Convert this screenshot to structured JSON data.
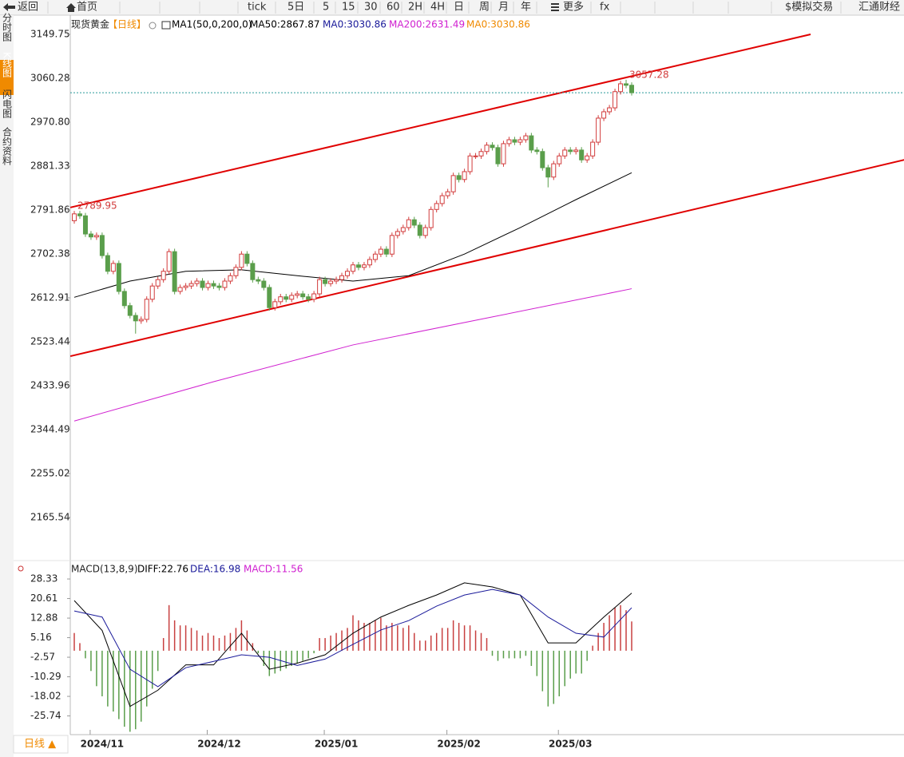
{
  "toolbar": [
    "返回",
    "首页",
    "tick",
    "5日",
    "5",
    "15",
    "30",
    "60",
    "2H",
    "4H",
    "日",
    "周",
    "月",
    "年",
    "更多",
    "fx",
    "$模拟交易",
    "汇通财经"
  ],
  "sidebar": [
    "分时图",
    "K线图",
    "闪电图",
    "合约资料"
  ],
  "tab": "日线 ▲",
  "chart_data": {
    "type": "candlestick",
    "title": "现货黄金",
    "period": "【日线】",
    "legend": [
      {
        "text": "MA1(50,0,200,0)",
        "color": "#000000"
      },
      {
        "text": "MA50:2867.87",
        "color": "#000000"
      },
      {
        "text": "MA0:3030.86",
        "color": "#1a1a9a"
      },
      {
        "text": "MA200:2631.49",
        "color": "#d020d0"
      },
      {
        "text": "MA0:3030.86",
        "color": "#f08a00"
      }
    ],
    "up_color": "#d23c3c",
    "down_color": "#5a9e4b",
    "ylim": [
      2080.9,
      3170.9
    ],
    "yticks": [
      3149.75,
      3060.28,
      {
        "value": 2970.8,
        "label": "2970.80"
      },
      2881.33,
      2791.86,
      2702.38,
      2612.91,
      2523.44,
      2433.96,
      2344.49,
      2255.02,
      2165.54
    ],
    "xticks": [
      {
        "value": 5,
        "label": "2024/11"
      },
      {
        "value": 26,
        "label": "2024/12"
      },
      {
        "value": 47,
        "label": "2025/01"
      },
      {
        "value": 69,
        "label": "2025/02"
      },
      {
        "value": 89,
        "label": "2025/03"
      }
    ],
    "open": [
      2770,
      2784,
      2780,
      2743,
      2737,
      2740,
      2699,
      2667,
      2683,
      2626,
      2597,
      2577,
      2566,
      2569,
      2610,
      2637,
      2650,
      2667,
      2707,
      2626,
      2634,
      2637,
      2642,
      2647,
      2634,
      2642,
      2637,
      2634,
      2647,
      2658,
      2675,
      2702,
      2683,
      2650,
      2647,
      2634,
      2593,
      2605,
      2615,
      2610,
      2618,
      2621,
      2615,
      2610,
      2621,
      2650,
      2642,
      2647,
      2650,
      2658,
      2667,
      2680,
      2675,
      2680,
      2691,
      2702,
      2712,
      2702,
      2740,
      2748,
      2756,
      2772,
      2761,
      2740,
      2756,
      2793,
      2805,
      2821,
      2829,
      2862,
      2854,
      2870,
      2902,
      2902,
      2911,
      2924,
      2919,
      2886,
      2927,
      2935,
      2930,
      2935,
      2943,
      2914,
      2911,
      2878,
      2859,
      2886,
      2902,
      2914,
      2911,
      2914,
      2894,
      2902,
      2930,
      2979,
      2992,
      3000,
      3033,
      3049,
      3046
    ],
    "high": [
      2789.95,
      2790,
      2786,
      2749,
      2746,
      2746,
      2705,
      2689,
      2689,
      2632,
      2603,
      2583,
      2575,
      2616,
      2643,
      2656,
      2673,
      2713,
      2713,
      2640,
      2643,
      2648,
      2653,
      2653,
      2648,
      2648,
      2643,
      2653,
      2664,
      2681,
      2708,
      2708,
      2689,
      2656,
      2653,
      2640,
      2611,
      2621,
      2621,
      2624,
      2627,
      2627,
      2621,
      2627,
      2656,
      2656,
      2653,
      2656,
      2664,
      2673,
      2686,
      2686,
      2686,
      2697,
      2708,
      2718,
      2718,
      2746,
      2754,
      2762,
      2778,
      2778,
      2767,
      2762,
      2799,
      2811,
      2827,
      2835,
      2868,
      2868,
      2876,
      2908,
      2908,
      2917,
      2930,
      2930,
      2925,
      2933,
      2941,
      2941,
      2941,
      2949,
      2949,
      2920,
      2917,
      2884,
      2892,
      2908,
      2920,
      2920,
      2920,
      2920,
      2908,
      2936,
      2985,
      2998,
      3006,
      3039,
      3055,
      3057.28,
      3052
    ],
    "low": [
      2764,
      2774,
      2737,
      2731,
      2731,
      2693,
      2661,
      2661,
      2620,
      2591,
      2571,
      2540,
      2560,
      2563,
      2604,
      2631,
      2644,
      2661,
      2620,
      2620,
      2628,
      2631,
      2636,
      2628,
      2628,
      2631,
      2628,
      2628,
      2641,
      2652,
      2669,
      2677,
      2644,
      2641,
      2628,
      2587,
      2587,
      2599,
      2604,
      2604,
      2612,
      2609,
      2604,
      2604,
      2615,
      2636,
      2636,
      2641,
      2644,
      2652,
      2661,
      2669,
      2669,
      2674,
      2685,
      2696,
      2696,
      2696,
      2734,
      2742,
      2750,
      2755,
      2734,
      2734,
      2750,
      2787,
      2799,
      2815,
      2823,
      2848,
      2848,
      2864,
      2896,
      2896,
      2905,
      2913,
      2880,
      2880,
      2921,
      2924,
      2924,
      2929,
      2908,
      2905,
      2872,
      2838,
      2853,
      2880,
      2896,
      2905,
      2905,
      2888,
      2888,
      2896,
      2924,
      2973,
      2986,
      2994,
      3027,
      3040,
      3025
    ],
    "close": [
      2784,
      2780,
      2743,
      2737,
      2740,
      2699,
      2667,
      2683,
      2626,
      2597,
      2577,
      2566,
      2569,
      2610,
      2637,
      2650,
      2667,
      2707,
      2626,
      2634,
      2637,
      2642,
      2647,
      2634,
      2642,
      2637,
      2634,
      2647,
      2658,
      2675,
      2702,
      2683,
      2650,
      2647,
      2634,
      2593,
      2605,
      2615,
      2610,
      2618,
      2621,
      2615,
      2610,
      2621,
      2650,
      2642,
      2647,
      2650,
      2658,
      2667,
      2680,
      2675,
      2680,
      2691,
      2702,
      2712,
      2702,
      2740,
      2748,
      2756,
      2772,
      2761,
      2740,
      2756,
      2793,
      2805,
      2821,
      2829,
      2862,
      2854,
      2870,
      2902,
      2902,
      2911,
      2924,
      2919,
      2886,
      2927,
      2935,
      2930,
      2935,
      2943,
      2914,
      2911,
      2878,
      2859,
      2886,
      2902,
      2914,
      2911,
      2914,
      2894,
      2902,
      2930,
      2979,
      2992,
      3000,
      3033,
      3049,
      3046,
      3030.86
    ],
    "ma": [
      {
        "name": "MA50",
        "color": "#000000",
        "x": [
          0,
          10,
          20,
          30,
          40,
          50,
          60,
          70,
          80,
          90,
          100
        ],
        "values": [
          2614,
          2647,
          2667,
          2670,
          2658,
          2647,
          2658,
          2702,
          2756,
          2813,
          2867.87
        ]
      },
      {
        "name": "MA200",
        "color": "#d020d0",
        "x": [
          0,
          25,
          50,
          75,
          100
        ],
        "values": [
          2362,
          2442,
          2517,
          2574,
          2631.49
        ]
      }
    ],
    "trend_lines": [
      {
        "color": "#e00000",
        "x": [
          -0.7,
          132.1
        ],
        "values": [
          2797,
          3149.75
        ]
      },
      {
        "color": "#e00000",
        "x": [
          -0.7,
          148.9
        ],
        "values": [
          2494,
          2894
        ]
      }
    ],
    "high_labels": [
      0,
      99
    ]
  },
  "macd": {
    "title": "MACD(13,8,9)",
    "legend": [
      {
        "text": "DIFF:22.76",
        "color": "#000000"
      },
      {
        "text": "DEA:16.98",
        "color": "#1a1a9a"
      },
      {
        "text": "MACD:11.56",
        "color": "#d020d0"
      }
    ],
    "ylim": [
      -32.5,
      31.5
    ],
    "yticks": [
      28.33,
      20.61,
      12.88,
      5.16,
      -2.57,
      -10.29,
      -18.02,
      -25.74
    ],
    "hist": [
      7,
      3,
      -3,
      -8,
      -14,
      -18,
      -22,
      -24,
      -27,
      -30,
      -32,
      -31,
      -28,
      -22,
      -15,
      -8,
      5,
      18,
      12,
      10,
      10,
      9,
      8,
      6,
      7,
      6,
      5,
      6,
      7,
      9,
      12,
      8,
      3,
      -1,
      -6,
      -10,
      -9,
      -8,
      -7,
      -6,
      -5,
      -4,
      -3,
      -1,
      5,
      5,
      6,
      7,
      8,
      9,
      14,
      12,
      11,
      11,
      12,
      13,
      10,
      11,
      10,
      9,
      10,
      7,
      4,
      4,
      6,
      7,
      9,
      9,
      12,
      11,
      10,
      10,
      8,
      7,
      5,
      -2,
      -4,
      -3,
      -3,
      -3,
      -3,
      -2,
      -6,
      -10,
      -16,
      -22,
      -21,
      -18,
      -14,
      -11,
      -9,
      -9,
      -4,
      2,
      7,
      11,
      14,
      17,
      18,
      16,
      11.56
    ],
    "diff": {
      "color": "#000000",
      "x": [
        0,
        5,
        10,
        15,
        20,
        25,
        30,
        35,
        40,
        45,
        50,
        55,
        60,
        65,
        70,
        75,
        80,
        85,
        90,
        95,
        100
      ],
      "values": [
        19.8,
        8.0,
        -22,
        -15.6,
        -5.6,
        -5.6,
        6.9,
        -7.3,
        -4.9,
        -1.6,
        6.9,
        13.3,
        17.9,
        22,
        26.8,
        25.2,
        22,
        3.1,
        3.1,
        13.3,
        22.76
      ]
    },
    "dea": {
      "color": "#1a1a9a",
      "x": [
        0,
        5,
        10,
        15,
        20,
        25,
        30,
        35,
        40,
        45,
        50,
        55,
        60,
        65,
        70,
        75,
        80,
        85,
        90,
        95,
        100
      ],
      "values": [
        15.7,
        13.3,
        -7.3,
        -14.2,
        -6.7,
        -4.2,
        -1.6,
        -2.6,
        -5.8,
        -3.3,
        2.5,
        8.2,
        11.9,
        17.6,
        22,
        24.2,
        22,
        13.3,
        6.9,
        5.4,
        16.98
      ]
    }
  }
}
